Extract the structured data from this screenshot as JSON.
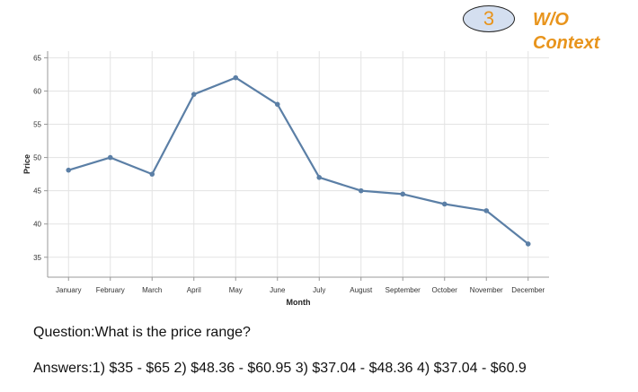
{
  "badge": {
    "number": "3"
  },
  "context_label": {
    "line1": "W/O",
    "line2": "Context"
  },
  "chart_data": {
    "type": "line",
    "title": "",
    "xlabel": "Month",
    "ylabel": "Price",
    "categories": [
      "January",
      "February",
      "March",
      "April",
      "May",
      "June",
      "July",
      "August",
      "September",
      "October",
      "November",
      "December"
    ],
    "values": [
      48.1,
      50.0,
      47.5,
      59.5,
      62.0,
      58.0,
      47.0,
      45.0,
      44.5,
      43.0,
      42.0,
      37.0
    ],
    "ylim": [
      32,
      66
    ],
    "yticks": [
      35,
      40,
      45,
      50,
      55,
      60,
      65
    ],
    "grid": true,
    "color": "#5b7fa6"
  },
  "question": {
    "text": "Question:What is the price range?"
  },
  "answers": {
    "text": "Answers:1) $35 - $65 2) $48.36 - $60.95 3) $37.04 - $48.36 4) $37.04 - $60.9"
  }
}
